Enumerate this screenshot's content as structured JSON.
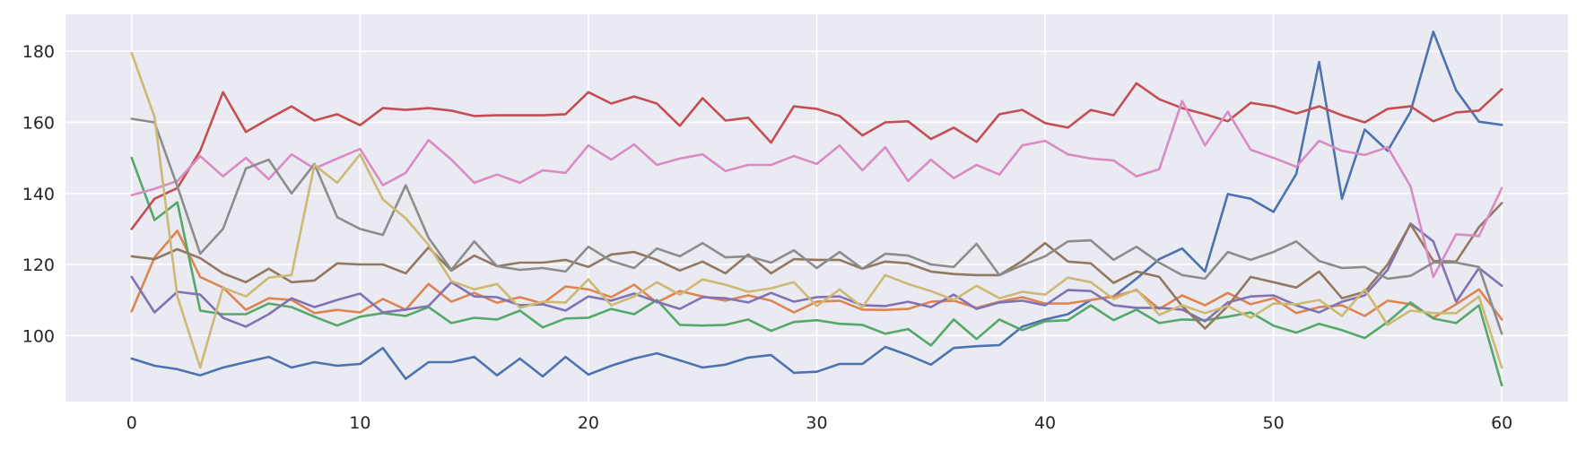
{
  "chart_data": {
    "type": "line",
    "title": "",
    "xlabel": "",
    "ylabel": "",
    "xlim": [
      -2.9,
      62.9
    ],
    "ylim": [
      81.4,
      190.4
    ],
    "xticks": [
      0,
      10,
      20,
      30,
      40,
      50,
      60
    ],
    "yticks": [
      100,
      120,
      140,
      160,
      180
    ],
    "grid": true,
    "legend": "none",
    "x": [
      0,
      1,
      2,
      3,
      4,
      5,
      6,
      7,
      8,
      9,
      10,
      11,
      12,
      13,
      14,
      15,
      16,
      17,
      18,
      19,
      20,
      21,
      22,
      23,
      24,
      25,
      26,
      27,
      28,
      29,
      30,
      31,
      32,
      33,
      34,
      35,
      36,
      37,
      38,
      39,
      40,
      41,
      42,
      43,
      44,
      45,
      46,
      47,
      48,
      49,
      50,
      51,
      52,
      53,
      54,
      55,
      56,
      57,
      58,
      59,
      60
    ],
    "series": [
      {
        "color": "#4c72b0",
        "values": [
          93.5,
          91.5,
          90.5,
          88.8,
          91,
          92.5,
          94,
          91,
          92.5,
          91.5,
          92,
          96.5,
          87.8,
          92.5,
          92.5,
          94,
          88.8,
          93.5,
          88.5,
          94,
          89,
          91.5,
          93.5,
          95,
          93,
          91,
          91.8,
          93.8,
          94.5,
          89.5,
          89.8,
          92,
          92,
          96.8,
          94.5,
          91.8,
          96.5,
          97,
          97.3,
          102.5,
          104.5,
          106,
          110,
          111,
          116,
          121.5,
          124.5,
          118,
          139.8,
          138.5,
          134.8,
          145.5,
          177,
          138.5,
          158,
          152,
          163,
          185.5,
          169,
          160.2,
          159.3
        ]
      },
      {
        "color": "#dd8452",
        "values": [
          106.8,
          122,
          129.5,
          116.5,
          113.5,
          107.2,
          110.5,
          110,
          106.3,
          107.2,
          106.5,
          110.3,
          107.3,
          114.5,
          109.5,
          112,
          109.2,
          110.8,
          109,
          113.8,
          113,
          110.8,
          114.3,
          109.3,
          112.5,
          111,
          109.8,
          111.3,
          109.8,
          106.5,
          109.5,
          109.8,
          107.3,
          107.2,
          107.5,
          109.5,
          109.8,
          107.8,
          109.5,
          110.8,
          109,
          109,
          110,
          111,
          112.8,
          107.5,
          111.3,
          108.5,
          112,
          108.8,
          110.5,
          106.3,
          108,
          108.5,
          105.5,
          109.8,
          108.8,
          105,
          108.8,
          113,
          104.5
        ]
      },
      {
        "color": "#55a868",
        "values": [
          150,
          132.5,
          137.5,
          107,
          106,
          106,
          109,
          108,
          105.3,
          102.8,
          105.3,
          106.3,
          105.5,
          108,
          103.5,
          105,
          104.5,
          107,
          102.3,
          104.8,
          105,
          107.5,
          106,
          110,
          103,
          102.8,
          103,
          104.5,
          101.3,
          103.8,
          104.3,
          103.3,
          103,
          100.5,
          101.8,
          97.2,
          104.5,
          99,
          104.5,
          101.5,
          104,
          104.3,
          108.5,
          104.3,
          107.3,
          103.5,
          104.5,
          104.3,
          105.3,
          106.5,
          102.8,
          100.8,
          103.3,
          101.5,
          99.3,
          103.8,
          109.3,
          104.8,
          103.5,
          108.5,
          86
        ]
      },
      {
        "color": "#c44e52",
        "values": [
          130,
          138.5,
          141.5,
          152,
          168.5,
          157.3,
          161,
          164.5,
          160.5,
          162.3,
          159.2,
          164,
          163.5,
          164,
          163.3,
          161.8,
          162,
          162,
          162,
          162.3,
          168.5,
          165.3,
          167.3,
          165.3,
          159,
          166.8,
          160.5,
          161.3,
          154.3,
          164.5,
          163.8,
          161.8,
          156.3,
          160,
          160.3,
          155.3,
          158.5,
          154.5,
          162.3,
          163.5,
          159.8,
          158.5,
          163.5,
          162,
          171,
          166.5,
          164,
          162.3,
          160.3,
          165.5,
          164.5,
          162.5,
          164.5,
          162,
          160,
          163.8,
          164.5,
          160.3,
          162.8,
          163.3,
          169.3
        ]
      },
      {
        "color": "#8172b3",
        "values": [
          116.5,
          106.5,
          112.3,
          111.5,
          105,
          102.5,
          106,
          110.5,
          108,
          110,
          111.8,
          106.5,
          107.3,
          108.3,
          115,
          111,
          110.8,
          108.5,
          108.8,
          107,
          111,
          109.8,
          111.8,
          109.5,
          107.5,
          110.8,
          110.5,
          109.3,
          112,
          109.5,
          110.8,
          111,
          108.5,
          108.3,
          109.5,
          108,
          111.5,
          107.5,
          109.3,
          109.8,
          108.5,
          112.8,
          112.5,
          108.5,
          107.8,
          107.8,
          107.3,
          104,
          109.3,
          111,
          111.3,
          108.5,
          106.5,
          109.5,
          111.3,
          118.5,
          131.5,
          126.5,
          109.5,
          119,
          114
        ]
      },
      {
        "color": "#937860",
        "values": [
          122.3,
          121.5,
          124.3,
          121.8,
          117.5,
          115,
          118.8,
          115,
          115.5,
          120.3,
          120,
          120,
          117.5,
          124.8,
          118.3,
          122.5,
          119.5,
          120.5,
          120.5,
          121.3,
          119.3,
          122.8,
          123.5,
          121.3,
          118.3,
          120.8,
          117.5,
          122.8,
          117.5,
          121.5,
          121.3,
          121.3,
          118.8,
          120.8,
          120.3,
          118,
          117.3,
          117,
          117,
          121,
          126,
          120.8,
          120.3,
          114.8,
          118,
          116.5,
          108.3,
          102,
          108.3,
          116.5,
          115,
          113.5,
          118,
          110.5,
          112.3,
          120,
          131.3,
          121,
          120.8,
          130.5,
          137.3
        ]
      },
      {
        "color": "#da8bc3",
        "values": [
          139.5,
          141.3,
          143.5,
          150.5,
          144.8,
          150,
          144,
          151,
          147,
          149.8,
          152.5,
          142.3,
          145.8,
          155,
          149.5,
          143,
          145.3,
          143,
          146.5,
          145.8,
          153.5,
          149.5,
          153.8,
          148,
          149.8,
          151,
          146.3,
          148,
          148,
          150.5,
          148.3,
          153.5,
          146.5,
          153,
          143.5,
          149.5,
          144.3,
          148,
          145.3,
          153.5,
          154.8,
          151,
          149.8,
          149.3,
          144.8,
          146.8,
          166,
          153.5,
          163,
          152.3,
          150,
          147.5,
          154.8,
          152,
          150.8,
          153,
          142,
          116.5,
          128.5,
          128,
          141.5
        ]
      },
      {
        "color": "#8c8c8c",
        "values": [
          161,
          160,
          142,
          123,
          130,
          147,
          149.5,
          140,
          148.3,
          133.3,
          130,
          128.3,
          142.3,
          127.5,
          118.5,
          126.5,
          119.5,
          118.5,
          119,
          118,
          125,
          121,
          119,
          124.5,
          122.3,
          126,
          122,
          122.3,
          120.5,
          124,
          119,
          123.5,
          118.8,
          123,
          122.5,
          120,
          119.3,
          125.8,
          117,
          119.8,
          122.3,
          126.5,
          126.8,
          121.3,
          125,
          120.5,
          117,
          116,
          123.5,
          121.3,
          123.5,
          126.5,
          121,
          119,
          119.3,
          116,
          116.8,
          120.5,
          120.5,
          119.3,
          100.5
        ]
      },
      {
        "color": "#ccb974",
        "values": [
          179.5,
          161.5,
          111,
          91,
          113.5,
          111,
          116.3,
          117,
          148,
          143,
          151,
          138.3,
          133,
          125.5,
          115.3,
          113,
          114.5,
          107.8,
          109.5,
          109.3,
          115.8,
          108.5,
          111,
          115,
          111.5,
          115.8,
          114.3,
          112.3,
          113.3,
          115,
          108.3,
          113,
          108,
          117,
          114.5,
          112.5,
          110,
          114,
          110.5,
          112.3,
          111.5,
          116.3,
          115,
          110.3,
          113,
          105.8,
          108.5,
          106.3,
          108.3,
          105,
          109,
          108.8,
          110,
          105.5,
          113,
          103,
          107,
          106.3,
          106.3,
          111,
          91
        ]
      }
    ]
  }
}
